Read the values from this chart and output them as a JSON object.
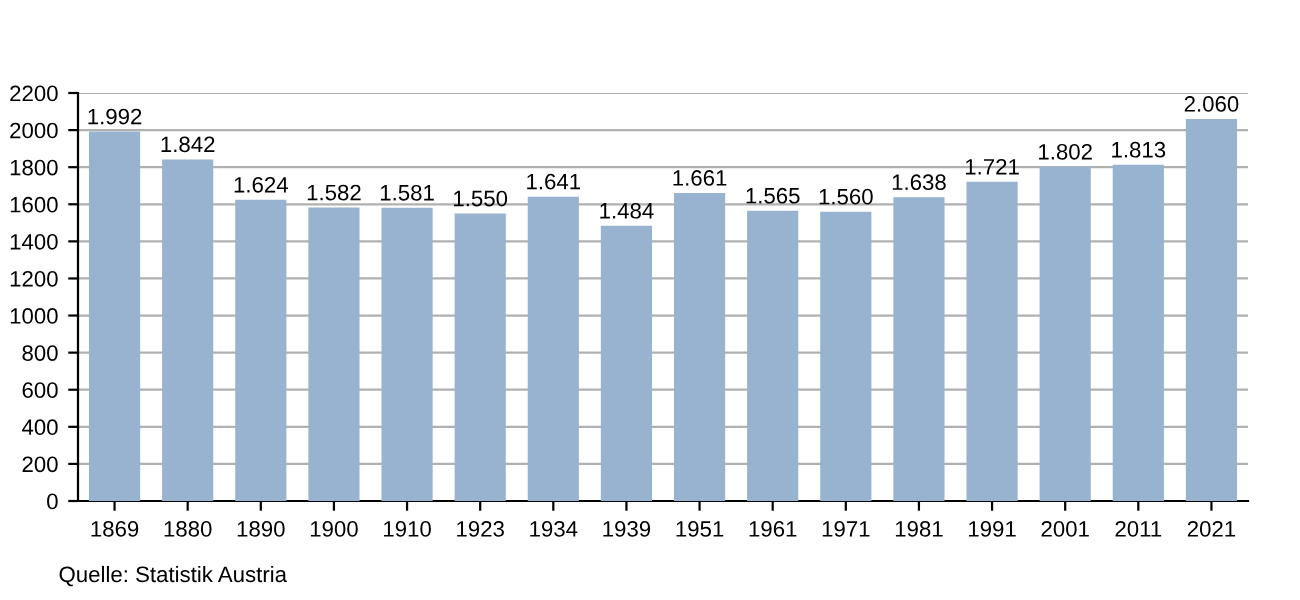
{
  "chart_data": {
    "type": "bar",
    "categories": [
      "1869",
      "1880",
      "1890",
      "1900",
      "1910",
      "1923",
      "1934",
      "1939",
      "1951",
      "1961",
      "1971",
      "1981",
      "1991",
      "2001",
      "2011",
      "2021"
    ],
    "values": [
      1992,
      1842,
      1624,
      1582,
      1581,
      1550,
      1641,
      1484,
      1661,
      1565,
      1560,
      1638,
      1721,
      1802,
      1813,
      2060
    ],
    "value_labels": [
      "1.992",
      "1.842",
      "1.624",
      "1.582",
      "1.581",
      "1.550",
      "1.641",
      "1.484",
      "1.661",
      "1.565",
      "1.560",
      "1.638",
      "1.721",
      "1.802",
      "1.813",
      "2.060"
    ],
    "color": "#97b3cf",
    "ylim": [
      0,
      2200
    ],
    "yticks": [
      0,
      200,
      400,
      600,
      800,
      1000,
      1200,
      1400,
      1600,
      1800,
      2000,
      2200
    ],
    "grid": "y",
    "legend": false,
    "annotations": [
      "Quelle: Statistik Austria"
    ]
  }
}
